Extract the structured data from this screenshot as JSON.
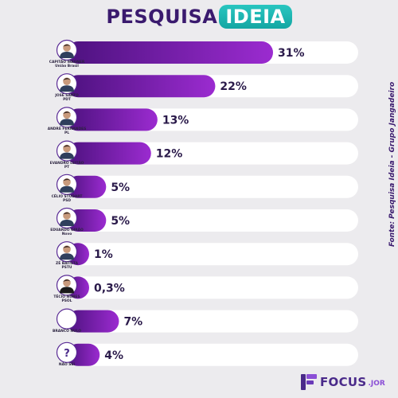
{
  "header": {
    "title_part1": "PESQUISA",
    "title_part2": "IDEIA"
  },
  "source_text": "Fonte: Pesquisa Ideia - Grupo Jangadeiro",
  "brand": {
    "name": "FOCUS",
    "suffix": ".JOR"
  },
  "colors": {
    "bar_start": "#4d127f",
    "bar_end": "#9b2bd0",
    "track": "#ffffff",
    "value_text": "#2a1a4a",
    "accent": "#1eb8b4"
  },
  "chart_data": {
    "type": "bar",
    "orientation": "horizontal",
    "title": "PESQUISA IDEIA",
    "xlim": [
      0,
      45
    ],
    "grid": false,
    "categories": [
      {
        "name": "CAPITÃO WAGNER",
        "party": "União Brasil"
      },
      {
        "name": "JOSÉ SARTO",
        "party": "PDT"
      },
      {
        "name": "ANDRÉ FERNANDES",
        "party": "PL"
      },
      {
        "name": "EVANDRO LEITÃO",
        "party": "PT"
      },
      {
        "name": "CÉLIO STUDART",
        "party": "PSD"
      },
      {
        "name": "EDUARDO GIRÃO",
        "party": "Novo"
      },
      {
        "name": "ZÉ BATISTA",
        "party": "PSTU"
      },
      {
        "name": "TÉCIO NUNES",
        "party": "PSOL"
      },
      {
        "name": "BRANCO NULO",
        "party": ""
      },
      {
        "name": "NÃO SEI",
        "party": ""
      }
    ],
    "values": [
      31,
      22,
      13,
      12,
      5,
      5,
      1,
      0.3,
      7,
      4
    ],
    "value_labels": [
      "31%",
      "22%",
      "13%",
      "12%",
      "5%",
      "5%",
      "1%",
      "0,3%",
      "7%",
      "4%"
    ]
  }
}
